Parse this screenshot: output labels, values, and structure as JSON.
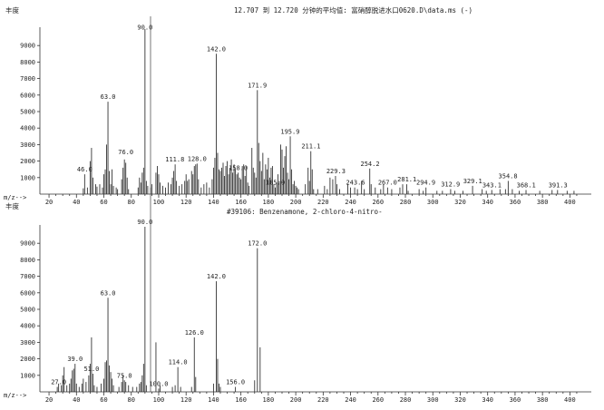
{
  "page": {
    "ylabel_top": "丰度",
    "ylabel_bottom": "丰度",
    "top_title": "12.707 到 12.720 分钟的平均值: 富硝醇脱进水口0620.D\\data.ms (-)",
    "bottom_title": "#39106: Benzenamone, 2-chloro-4-nitro-",
    "x_axis_label": "m/z-->"
  },
  "chart_data": [
    {
      "type": "bar",
      "title": "12.707 到 12.720 分钟的平均值: 富硝醇脱进水口0620.D\\data.ms (-)",
      "ylabel": "丰度",
      "xlabel": "m/z-->",
      "xlim": [
        15,
        410
      ],
      "ylim": [
        0,
        10000
      ],
      "yticks": [
        1000,
        2000,
        3000,
        4000,
        5000,
        6000,
        7000,
        8000,
        9000
      ],
      "xticks": [
        20,
        40,
        60,
        80,
        100,
        120,
        140,
        160,
        180,
        200,
        220,
        240,
        260,
        280,
        300,
        320,
        340,
        360,
        380,
        400
      ],
      "peak_labels": [
        {
          "x": 46.0,
          "y": 1200,
          "text": "46.0"
        },
        {
          "x": 63.0,
          "y": 5600,
          "text": "63.0"
        },
        {
          "x": 76.0,
          "y": 2250,
          "text": "76.0"
        },
        {
          "x": 90.0,
          "y": 9800,
          "text": "90.0"
        },
        {
          "x": 111.8,
          "y": 1800,
          "text": "111.8"
        },
        {
          "x": 128.0,
          "y": 1850,
          "text": "128.0"
        },
        {
          "x": 142.0,
          "y": 8500,
          "text": "142.0"
        },
        {
          "x": 158.0,
          "y": 1300,
          "text": "158.0"
        },
        {
          "x": 171.9,
          "y": 6300,
          "text": "171.9"
        },
        {
          "x": 185.0,
          "y": 400,
          "text": "185.0"
        },
        {
          "x": 195.9,
          "y": 3500,
          "text": "195.9"
        },
        {
          "x": 211.1,
          "y": 2600,
          "text": "211.1"
        },
        {
          "x": 229.3,
          "y": 1100,
          "text": "229.3"
        },
        {
          "x": 243.6,
          "y": 400,
          "text": "243.6"
        },
        {
          "x": 254.2,
          "y": 1550,
          "text": "254.2"
        },
        {
          "x": 267.0,
          "y": 400,
          "text": "267.0"
        },
        {
          "x": 281.1,
          "y": 600,
          "text": "281.1"
        },
        {
          "x": 294.9,
          "y": 400,
          "text": "294.9"
        },
        {
          "x": 312.9,
          "y": 300,
          "text": "312.9"
        },
        {
          "x": 329.1,
          "y": 500,
          "text": "329.1"
        },
        {
          "x": 343.1,
          "y": 250,
          "text": "343.1"
        },
        {
          "x": 354.8,
          "y": 800,
          "text": "354.8"
        },
        {
          "x": 368.1,
          "y": 250,
          "text": "368.1"
        },
        {
          "x": 391.3,
          "y": 250,
          "text": "391.3"
        }
      ],
      "peaks": [
        [
          45,
          350
        ],
        [
          46,
          1200
        ],
        [
          48,
          400
        ],
        [
          50,
          2000
        ],
        [
          51,
          2800
        ],
        [
          52,
          1000
        ],
        [
          54,
          600
        ],
        [
          55,
          450
        ],
        [
          57,
          600
        ],
        [
          59,
          400
        ],
        [
          60,
          1200
        ],
        [
          61,
          1500
        ],
        [
          62,
          3000
        ],
        [
          63,
          5600
        ],
        [
          64,
          1400
        ],
        [
          65,
          600
        ],
        [
          66,
          1500
        ],
        [
          67,
          500
        ],
        [
          69,
          400
        ],
        [
          70,
          300
        ],
        [
          73,
          900
        ],
        [
          74,
          1600
        ],
        [
          75,
          2100
        ],
        [
          76,
          1900
        ],
        [
          77,
          1000
        ],
        [
          78,
          300
        ],
        [
          85,
          400
        ],
        [
          86,
          1000
        ],
        [
          87,
          700
        ],
        [
          88,
          1300
        ],
        [
          89,
          1600
        ],
        [
          90,
          10000
        ],
        [
          91,
          800
        ],
        [
          92,
          500
        ],
        [
          94,
          400
        ],
        [
          95,
          600
        ],
        [
          98,
          1300
        ],
        [
          99,
          1700
        ],
        [
          100,
          1200
        ],
        [
          101,
          700
        ],
        [
          103,
          500
        ],
        [
          105,
          400
        ],
        [
          107,
          700
        ],
        [
          109,
          600
        ],
        [
          110,
          1000
        ],
        [
          111,
          1400
        ],
        [
          112,
          1800
        ],
        [
          113,
          800
        ],
        [
          115,
          500
        ],
        [
          117,
          600
        ],
        [
          119,
          800
        ],
        [
          120,
          1200
        ],
        [
          121,
          800
        ],
        [
          122,
          900
        ],
        [
          124,
          1400
        ],
        [
          125,
          1200
        ],
        [
          126,
          1700
        ],
        [
          127,
          1800
        ],
        [
          128,
          1850
        ],
        [
          129,
          900
        ],
        [
          131,
          400
        ],
        [
          133,
          600
        ],
        [
          135,
          700
        ],
        [
          137,
          400
        ],
        [
          139,
          900
        ],
        [
          140,
          1600
        ],
        [
          141,
          2200
        ],
        [
          142,
          8500
        ],
        [
          143,
          2500
        ],
        [
          144,
          1500
        ],
        [
          145,
          1400
        ],
        [
          146,
          1600
        ],
        [
          147,
          1900
        ],
        [
          148,
          1100
        ],
        [
          149,
          1700
        ],
        [
          150,
          2000
        ],
        [
          151,
          1200
        ],
        [
          152,
          1600
        ],
        [
          153,
          2100
        ],
        [
          154,
          1300
        ],
        [
          155,
          1800
        ],
        [
          156,
          1500
        ],
        [
          157,
          1200
        ],
        [
          158,
          1300
        ],
        [
          159,
          1000
        ],
        [
          160,
          900
        ],
        [
          161,
          1700
        ],
        [
          162,
          1800
        ],
        [
          163,
          1100
        ],
        [
          164,
          1700
        ],
        [
          165,
          700
        ],
        [
          166,
          500
        ],
        [
          168,
          2800
        ],
        [
          169,
          1600
        ],
        [
          170,
          1300
        ],
        [
          171,
          1000
        ],
        [
          172,
          6300
        ],
        [
          173,
          3100
        ],
        [
          174,
          2000
        ],
        [
          175,
          1400
        ],
        [
          176,
          2500
        ],
        [
          177,
          900
        ],
        [
          178,
          1800
        ],
        [
          179,
          1500
        ],
        [
          180,
          2200
        ],
        [
          181,
          1000
        ],
        [
          182,
          1600
        ],
        [
          183,
          1700
        ],
        [
          184,
          600
        ],
        [
          185,
          400
        ],
        [
          186,
          700
        ],
        [
          187,
          1200
        ],
        [
          188,
          800
        ],
        [
          189,
          3000
        ],
        [
          190,
          2700
        ],
        [
          191,
          1600
        ],
        [
          192,
          2300
        ],
        [
          193,
          2900
        ],
        [
          194,
          1300
        ],
        [
          195,
          900
        ],
        [
          196,
          3500
        ],
        [
          197,
          1500
        ],
        [
          198,
          600
        ],
        [
          199,
          800
        ],
        [
          200,
          500
        ],
        [
          201,
          400
        ],
        [
          202,
          300
        ],
        [
          207,
          600
        ],
        [
          209,
          1600
        ],
        [
          210,
          800
        ],
        [
          211,
          2600
        ],
        [
          212,
          1500
        ],
        [
          213,
          300
        ],
        [
          216,
          300
        ],
        [
          221,
          500
        ],
        [
          223,
          300
        ],
        [
          225,
          1000
        ],
        [
          227,
          900
        ],
        [
          229,
          1100
        ],
        [
          230,
          600
        ],
        [
          232,
          300
        ],
        [
          238,
          600
        ],
        [
          240,
          400
        ],
        [
          243,
          400
        ],
        [
          245,
          300
        ],
        [
          248,
          800
        ],
        [
          250,
          300
        ],
        [
          254,
          1550
        ],
        [
          255,
          600
        ],
        [
          258,
          400
        ],
        [
          262,
          300
        ],
        [
          264,
          600
        ],
        [
          267,
          400
        ],
        [
          270,
          300
        ],
        [
          276,
          400
        ],
        [
          278,
          600
        ],
        [
          281,
          600
        ],
        [
          282,
          200
        ],
        [
          290,
          300
        ],
        [
          293,
          200
        ],
        [
          295,
          400
        ],
        [
          303,
          200
        ],
        [
          307,
          200
        ],
        [
          313,
          300
        ],
        [
          316,
          200
        ],
        [
          322,
          200
        ],
        [
          329,
          500
        ],
        [
          336,
          300
        ],
        [
          339,
          200
        ],
        [
          343,
          250
        ],
        [
          349,
          300
        ],
        [
          353,
          300
        ],
        [
          355,
          800
        ],
        [
          358,
          300
        ],
        [
          363,
          200
        ],
        [
          368,
          250
        ],
        [
          378,
          200
        ],
        [
          387,
          250
        ],
        [
          391,
          250
        ],
        [
          398,
          200
        ],
        [
          403,
          200
        ]
      ]
    },
    {
      "type": "bar",
      "title": "#39106: Benzenamone, 2-chloro-4-nitro-",
      "ylabel": "丰度",
      "xlabel": "m/z-->",
      "xlim": [
        15,
        410
      ],
      "ylim": [
        0,
        10000
      ],
      "yticks": [
        1000,
        2000,
        3000,
        4000,
        5000,
        6000,
        7000,
        8000,
        9000
      ],
      "xticks": [
        20,
        40,
        60,
        80,
        100,
        120,
        140,
        160,
        180,
        200,
        220,
        240,
        260,
        280,
        300,
        320,
        340,
        360,
        380,
        400
      ],
      "peak_labels": [
        {
          "x": 27.0,
          "y": 300,
          "text": "27.0"
        },
        {
          "x": 39.0,
          "y": 1700,
          "text": "39.0"
        },
        {
          "x": 51.0,
          "y": 1100,
          "text": "51.0"
        },
        {
          "x": 63.0,
          "y": 5700,
          "text": "63.0"
        },
        {
          "x": 75.0,
          "y": 700,
          "text": "75.0"
        },
        {
          "x": 90.0,
          "y": 10000,
          "text": "90.0"
        },
        {
          "x": 100.0,
          "y": 200,
          "text": "100.0"
        },
        {
          "x": 114.0,
          "y": 1500,
          "text": "114.0"
        },
        {
          "x": 126.0,
          "y": 3300,
          "text": "126.0"
        },
        {
          "x": 142.0,
          "y": 6700,
          "text": "142.0"
        },
        {
          "x": 156.0,
          "y": 300,
          "text": "156.0"
        },
        {
          "x": 172.0,
          "y": 8700,
          "text": "172.0"
        }
      ],
      "peaks": [
        [
          26,
          300
        ],
        [
          27,
          500
        ],
        [
          29,
          400
        ],
        [
          30,
          1000
        ],
        [
          31,
          1500
        ],
        [
          33,
          400
        ],
        [
          35,
          500
        ],
        [
          36,
          800
        ],
        [
          37,
          1300
        ],
        [
          38,
          1400
        ],
        [
          39,
          1700
        ],
        [
          40,
          500
        ],
        [
          42,
          300
        ],
        [
          44,
          500
        ],
        [
          45,
          800
        ],
        [
          47,
          600
        ],
        [
          49,
          1000
        ],
        [
          50,
          1700
        ],
        [
          51,
          3300
        ],
        [
          52,
          1100
        ],
        [
          53,
          400
        ],
        [
          55,
          300
        ],
        [
          58,
          500
        ],
        [
          60,
          800
        ],
        [
          61,
          1800
        ],
        [
          62,
          1900
        ],
        [
          63,
          5700
        ],
        [
          64,
          1600
        ],
        [
          65,
          1200
        ],
        [
          66,
          800
        ],
        [
          67,
          400
        ],
        [
          71,
          300
        ],
        [
          73,
          600
        ],
        [
          74,
          1000
        ],
        [
          75,
          700
        ],
        [
          76,
          600
        ],
        [
          78,
          400
        ],
        [
          81,
          300
        ],
        [
          84,
          300
        ],
        [
          86,
          500
        ],
        [
          87,
          600
        ],
        [
          88,
          1000
        ],
        [
          89,
          1700
        ],
        [
          90,
          10000
        ],
        [
          91,
          400
        ],
        [
          98,
          3000
        ],
        [
          100,
          200
        ],
        [
          101,
          400
        ],
        [
          110,
          300
        ],
        [
          112,
          400
        ],
        [
          114,
          1500
        ],
        [
          116,
          300
        ],
        [
          124,
          300
        ],
        [
          126,
          3300
        ],
        [
          127,
          900
        ],
        [
          140,
          500
        ],
        [
          142,
          6700
        ],
        [
          143,
          2000
        ],
        [
          144,
          500
        ],
        [
          145,
          300
        ],
        [
          156,
          300
        ],
        [
          170,
          700
        ],
        [
          172,
          8700
        ],
        [
          174,
          2700
        ]
      ]
    }
  ]
}
